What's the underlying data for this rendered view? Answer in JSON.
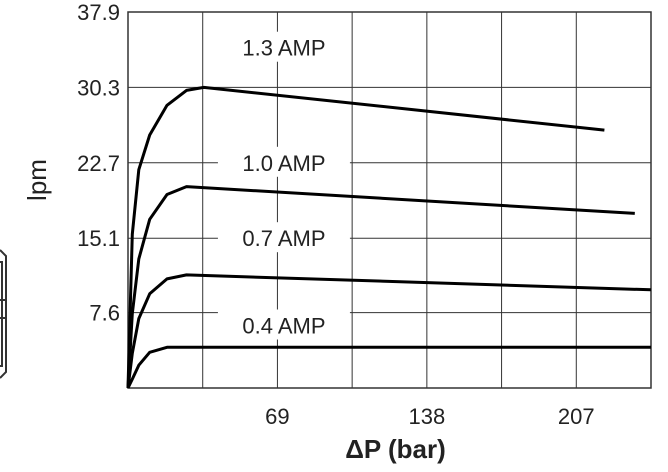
{
  "chart_data": {
    "type": "line",
    "title": "",
    "xlabel": "ΔP (bar)",
    "ylabel": "lpm",
    "xlim": [
      0,
      241.5
    ],
    "ylim": [
      0,
      37.9
    ],
    "x_ticks": [
      69,
      138,
      207
    ],
    "x_tick_labels": [
      "69",
      "138",
      "207"
    ],
    "y_ticks": [
      7.6,
      15.1,
      22.7,
      30.3,
      37.9
    ],
    "y_tick_labels": [
      "7.6",
      "15.1",
      "22.7",
      "30.3",
      "37.9"
    ],
    "x_gridlines": [
      34.5,
      69,
      103.5,
      138,
      172.5,
      207
    ],
    "y_gridlines": [
      7.6,
      15.1,
      22.7,
      30.3
    ],
    "grid": true,
    "legend": "none",
    "series": [
      {
        "name": "1.3 AMP",
        "x": [
          0,
          2,
          5,
          10,
          18,
          27,
          35,
          220
        ],
        "y": [
          0,
          15.5,
          22.0,
          25.5,
          28.5,
          30.0,
          30.3,
          26.0
        ]
      },
      {
        "name": "1.0 AMP",
        "x": [
          0,
          2,
          5,
          10,
          18,
          27,
          234
        ],
        "y": [
          0,
          7.5,
          13.0,
          17.0,
          19.5,
          20.3,
          17.6
        ]
      },
      {
        "name": "0.7 AMP",
        "x": [
          0,
          2,
          5,
          10,
          18,
          27,
          241.5
        ],
        "y": [
          0,
          3.5,
          7.0,
          9.5,
          11.0,
          11.4,
          9.9
        ]
      },
      {
        "name": "0.4 AMP",
        "x": [
          0,
          2,
          5,
          10,
          18,
          25,
          241.5
        ],
        "y": [
          0,
          0.9,
          2.3,
          3.6,
          4.1,
          4.1,
          4.1
        ]
      }
    ]
  }
}
